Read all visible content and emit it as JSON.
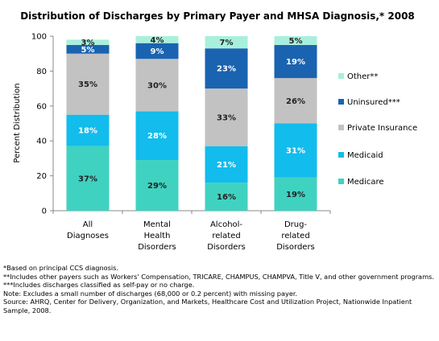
{
  "chart_data": {
    "type": "bar",
    "stacked": true,
    "title": "Distribution of Discharges by Primary Payer and MHSA Diagnosis,* 2008",
    "ylabel": "Percent Distribution",
    "xlabel": "",
    "ylim": [
      0,
      100
    ],
    "yticks": [
      0,
      20,
      40,
      60,
      80,
      100
    ],
    "grid": false,
    "legend_position": "right",
    "categories": [
      [
        "All",
        "Diagnoses"
      ],
      [
        "Mental",
        "Health",
        "Disorders"
      ],
      [
        "Alcohol-",
        "related",
        "Disorders"
      ],
      [
        "Drug-",
        "related",
        "Disorders"
      ]
    ],
    "series": [
      {
        "name": "Medicare",
        "color": "#40d2c0",
        "text_color": "#222222",
        "values": [
          37,
          29,
          16,
          19
        ]
      },
      {
        "name": "Medicaid",
        "color": "#12bcec",
        "text_color": "#ffffff",
        "values": [
          18,
          28,
          21,
          31
        ]
      },
      {
        "name": "Private Insurance",
        "color": "#c2c2c2",
        "text_color": "#222222",
        "values": [
          35,
          30,
          33,
          26
        ]
      },
      {
        "name": "Uninsured***",
        "color": "#1a63b0",
        "text_color": "#ffffff",
        "values": [
          5,
          9,
          23,
          19
        ]
      },
      {
        "name": "Other**",
        "color": "#a8f0dc",
        "text_color": "#222222",
        "values": [
          3,
          4,
          7,
          5
        ]
      }
    ],
    "data_labels_suffix": "%"
  },
  "notes": [
    "*Based on principal CCS diagnosis.",
    "**Includes other payers such as Workers' Compensation, TRICARE, CHAMPUS, CHAMPVA, Title V, and other government programs.",
    "***Includes discharges classified as self-pay or no charge.",
    "Note: Excludes a small number of discharges (68,000 or 0.2 percent) with missing payer.",
    "Source: AHRQ, Center for Delivery, Organization, and Markets, Healthcare Cost and Utilization Project, Nationwide Inpatient Sample, 2008."
  ]
}
